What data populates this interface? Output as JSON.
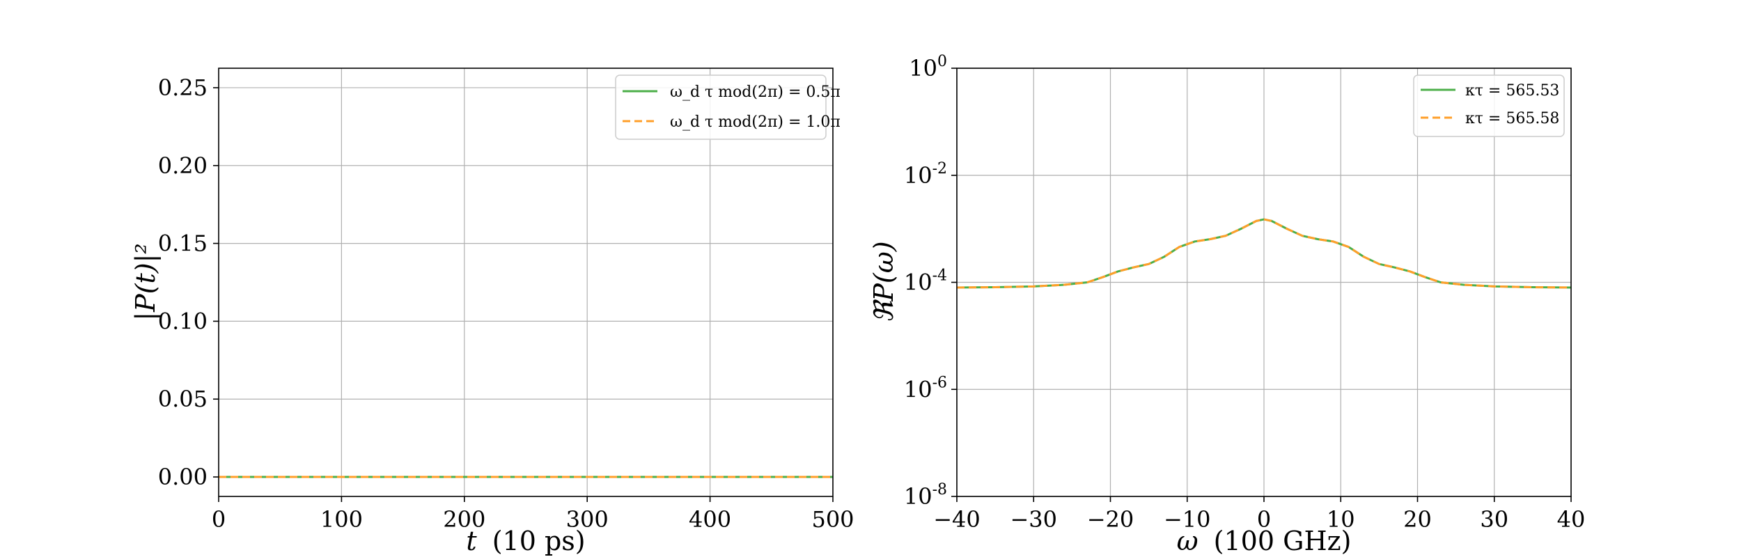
{
  "colors": {
    "green": "#4daf4a",
    "orange": "#ff9f2a",
    "grid": "#b0b0b0"
  },
  "chart_data": [
    {
      "type": "line",
      "xlabel_var": "t",
      "xlabel_unit": "(10 ps)",
      "ylabel": "|P(t)|²",
      "xlim": [
        0,
        500
      ],
      "ylim": [
        -0.0125,
        0.2625
      ],
      "xticks": [
        0,
        100,
        200,
        300,
        400,
        500
      ],
      "xtick_labels": [
        "0",
        "100",
        "200",
        "300",
        "400",
        "500"
      ],
      "yticks": [
        0.0,
        0.05,
        0.1,
        0.15,
        0.2,
        0.25
      ],
      "ytick_labels": [
        "0.00",
        "0.05",
        "0.10",
        "0.15",
        "0.20",
        "0.25"
      ],
      "grid": true,
      "legend_position": "top-right",
      "series": [
        {
          "name": "ω_d τ mod(2π) = 0.5π",
          "color": "#4daf4a",
          "style": "solid",
          "x": [
            0,
            500
          ],
          "y": [
            0.0,
            0.0
          ]
        },
        {
          "name": "ω_d τ mod(2π) = 1.0π",
          "color": "#ff9f2a",
          "style": "dashed",
          "x": [
            0,
            500
          ],
          "y": [
            0.0,
            0.0
          ]
        }
      ]
    },
    {
      "type": "line",
      "yscale": "log",
      "xlabel_var": "ω",
      "xlabel_unit": "(100 GHz)",
      "ylabel": "ℜP(ω)",
      "xlim": [
        -40,
        40
      ],
      "ylim_exp": [
        -8,
        0
      ],
      "xticks": [
        -40,
        -30,
        -20,
        -10,
        0,
        10,
        20,
        30,
        40
      ],
      "xtick_labels": [
        "−40",
        "−30",
        "−20",
        "−10",
        "0",
        "10",
        "20",
        "30",
        "40"
      ],
      "yticks_exp": [
        0,
        -2,
        -4,
        -6,
        -8
      ],
      "ytick_base": "10",
      "ytick_exps": [
        "0",
        "-2",
        "-4",
        "-6",
        "-8"
      ],
      "grid": true,
      "legend_position": "top-right",
      "series": [
        {
          "name": "κτ = 565.53",
          "color": "#4daf4a",
          "style": "solid",
          "x": [
            -40,
            -35,
            -30,
            -26,
            -23,
            -21,
            -19,
            -17,
            -15,
            -13,
            -11,
            -9,
            -7,
            -5,
            -3,
            -1,
            0,
            1,
            3,
            5,
            7,
            9,
            11,
            13,
            15,
            17,
            19,
            21,
            23,
            26,
            30,
            35,
            40
          ],
          "y": [
            8e-05,
            8.1e-05,
            8.4e-05,
            9e-05,
            0.0001,
            0.000125,
            0.00016,
            0.00019,
            0.00022,
            0.0003,
            0.00046,
            0.00058,
            0.00064,
            0.00074,
            0.001,
            0.0014,
            0.0015,
            0.0014,
            0.001,
            0.00074,
            0.00064,
            0.00058,
            0.00046,
            0.0003,
            0.00022,
            0.00019,
            0.00016,
            0.000125,
            0.0001,
            9e-05,
            8.4e-05,
            8.1e-05,
            8e-05
          ]
        },
        {
          "name": "κτ = 565.58",
          "color": "#ff9f2a",
          "style": "dashed",
          "x": [
            -40,
            -35,
            -30,
            -26,
            -23,
            -21,
            -19,
            -17,
            -15,
            -13,
            -11,
            -9,
            -7,
            -5,
            -3,
            -1,
            0,
            1,
            3,
            5,
            7,
            9,
            11,
            13,
            15,
            17,
            19,
            21,
            23,
            26,
            30,
            35,
            40
          ],
          "y": [
            8e-05,
            8.1e-05,
            8.4e-05,
            9e-05,
            0.0001,
            0.000125,
            0.00016,
            0.00019,
            0.00022,
            0.0003,
            0.00046,
            0.00058,
            0.00064,
            0.00074,
            0.001,
            0.0014,
            0.0015,
            0.0014,
            0.001,
            0.00074,
            0.00064,
            0.00058,
            0.00046,
            0.0003,
            0.00022,
            0.00019,
            0.00016,
            0.000125,
            0.0001,
            9e-05,
            8.4e-05,
            8.1e-05,
            8e-05
          ]
        }
      ]
    }
  ]
}
